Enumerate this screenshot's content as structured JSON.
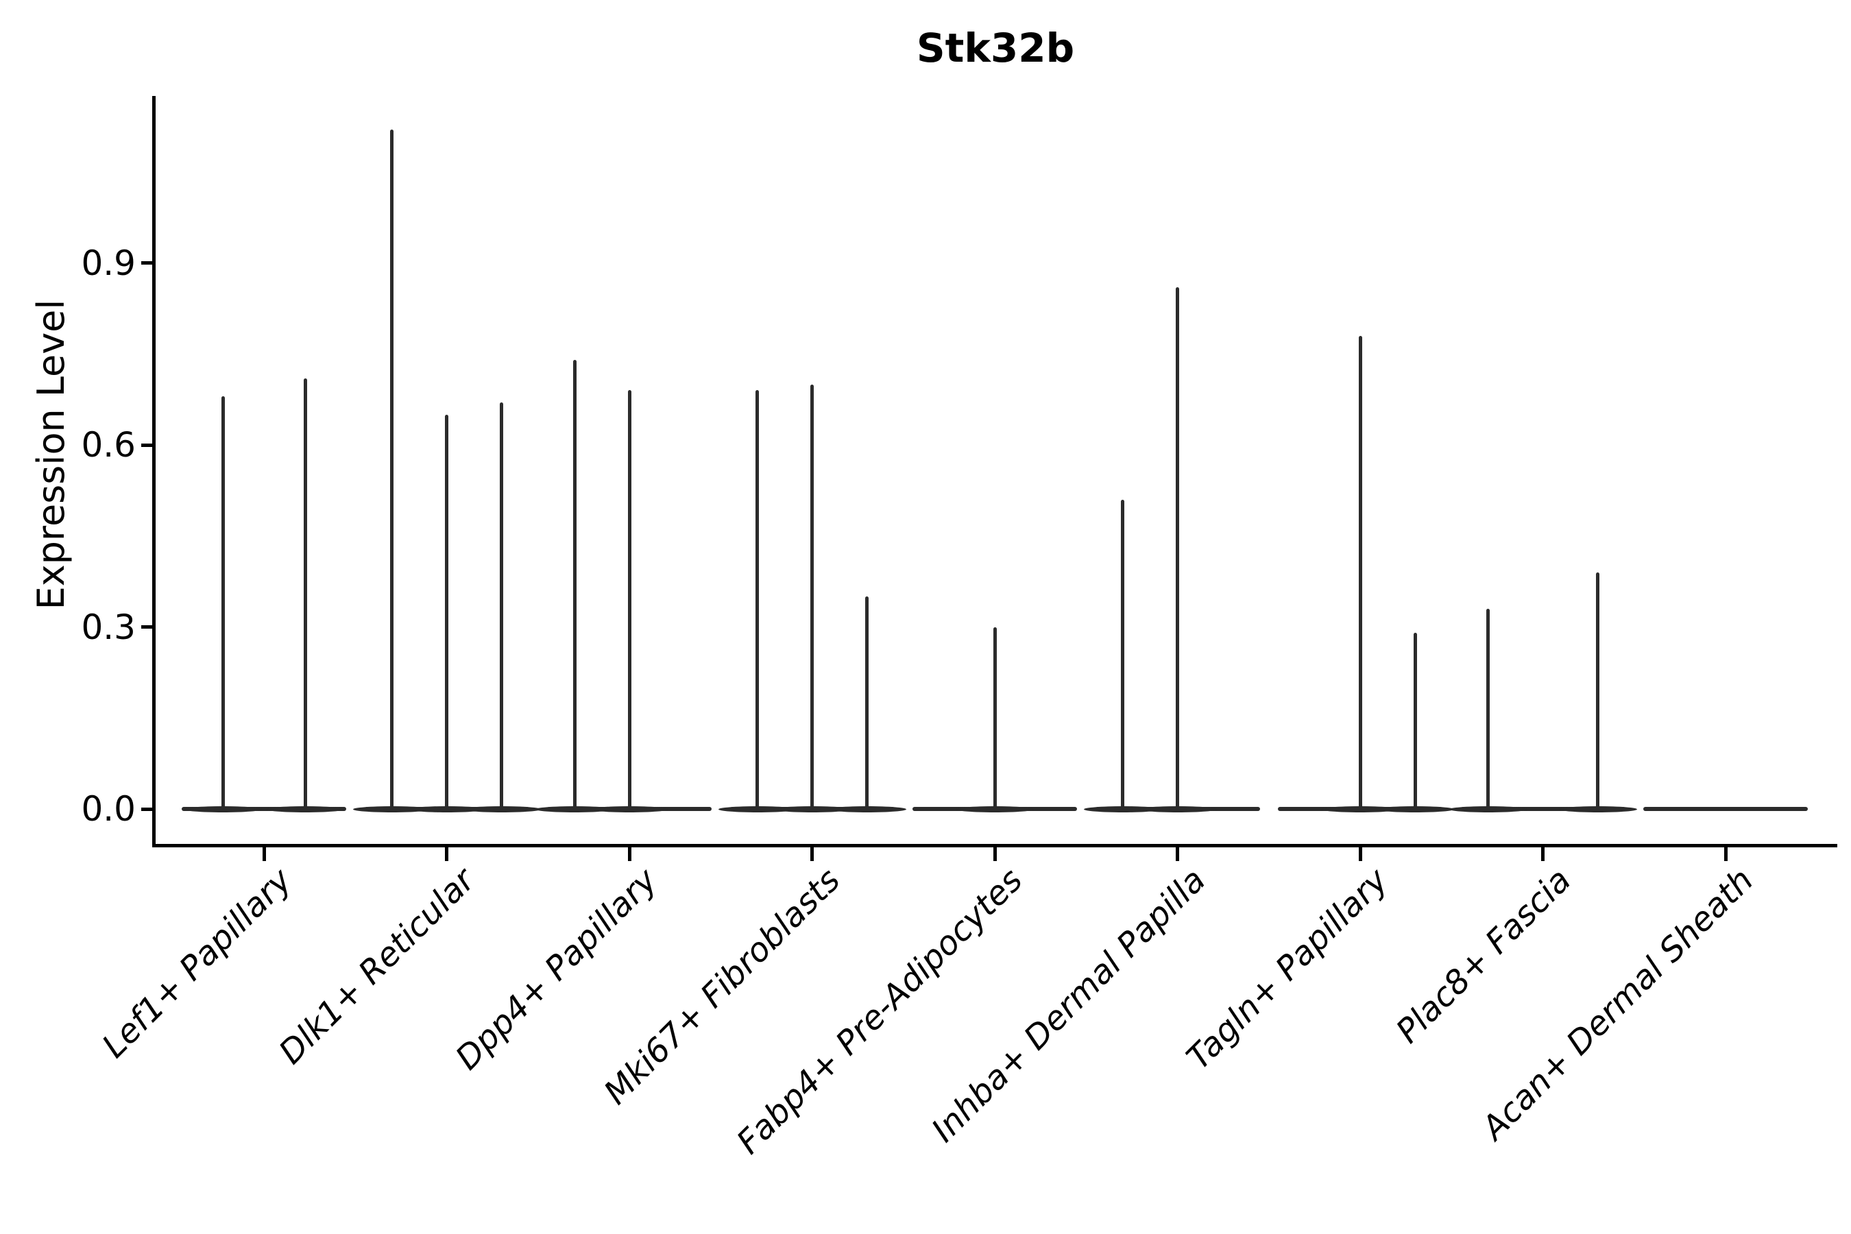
{
  "chart_data": {
    "type": "violin",
    "title": "Stk32b",
    "ylabel": "Expression Level",
    "xlabel": "",
    "ylim": [
      0,
      1.175
    ],
    "yticks": [
      0.0,
      0.3,
      0.6,
      0.9
    ],
    "ytick_labels": [
      "0.0",
      "0.3",
      "0.6",
      "0.9"
    ],
    "grid": false,
    "legend": "none",
    "categories": [
      "Lef1+ Papillary",
      "Dlk1+ Reticular",
      "Dpp4+ Papillary",
      "Mki67+ Fibroblasts",
      "Fabp4+ Pre-Adipocytes",
      "Inhba+ Dermal Papilla",
      "Tagln+ Papillary",
      "Plac8+ Fascia",
      "Acan+ Dermal Sheath"
    ],
    "groups": [
      {
        "label": "Lef1+ Papillary",
        "violins": [
          {
            "offset": -60,
            "max": 0.68
          },
          {
            "offset": 60,
            "max": 0.71
          }
        ]
      },
      {
        "label": "Dlk1+ Reticular",
        "violins": [
          {
            "offset": -80,
            "max": 1.12
          },
          {
            "offset": 0,
            "max": 0.65
          },
          {
            "offset": 80,
            "max": 0.67
          }
        ]
      },
      {
        "label": "Dpp4+ Papillary",
        "violins": [
          {
            "offset": -80,
            "max": 0.74
          },
          {
            "offset": 0,
            "max": 0.69
          }
        ]
      },
      {
        "label": "Mki67+ Fibroblasts",
        "violins": [
          {
            "offset": -80,
            "max": 0.69
          },
          {
            "offset": 0,
            "max": 0.7
          },
          {
            "offset": 80,
            "max": 0.35
          }
        ]
      },
      {
        "label": "Fabp4+ Pre-Adipocytes",
        "violins": [
          {
            "offset": 0,
            "max": 0.3
          }
        ]
      },
      {
        "label": "Inhba+ Dermal Papilla",
        "violins": [
          {
            "offset": -80,
            "max": 0.51
          },
          {
            "offset": 0,
            "max": 0.86
          }
        ]
      },
      {
        "label": "Tagln+ Papillary",
        "violins": [
          {
            "offset": 0,
            "max": 0.78
          },
          {
            "offset": 80,
            "max": 0.29
          }
        ]
      },
      {
        "label": "Plac8+ Fascia",
        "violins": [
          {
            "offset": -80,
            "max": 0.33
          },
          {
            "offset": 80,
            "max": 0.39
          }
        ]
      },
      {
        "label": "Acan+ Dermal Sheath",
        "violins": []
      }
    ],
    "colors": {
      "violin": "#2b2b2b",
      "axis": "#000000",
      "text": "#000000",
      "background": "#ffffff"
    }
  }
}
